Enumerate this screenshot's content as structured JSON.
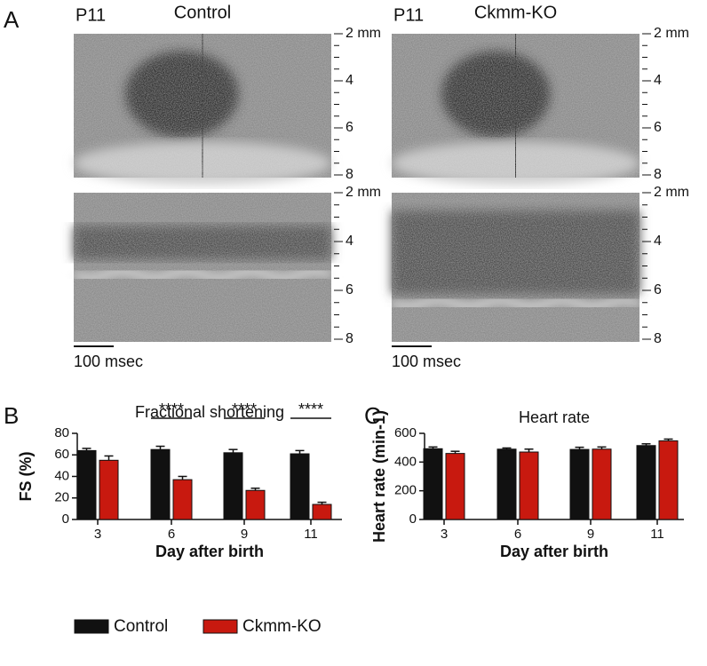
{
  "panel_a": {
    "label": "A",
    "images": [
      {
        "stage": "P11",
        "group": "Control",
        "scale_bar": "100 msec"
      },
      {
        "stage": "P11",
        "group": "Ckmm-KO",
        "scale_bar": "100 msec"
      }
    ],
    "depth_ticks": [
      {
        "value": 2,
        "label": "2 mm"
      },
      4,
      6,
      8
    ]
  },
  "chart_data": [
    {
      "type": "bar",
      "panel_label": "B",
      "title": "Fractional shortening",
      "x_label": "Day after birth",
      "y_label": "FS (%)",
      "categories": [
        "3",
        "6",
        "9",
        "11"
      ],
      "series": [
        {
          "name": "Control",
          "color": "#111111",
          "values": [
            64,
            65,
            62,
            61
          ],
          "errors": [
            2,
            3,
            3,
            3
          ]
        },
        {
          "name": "Ckmm-KO",
          "color": "#c8190f",
          "values": [
            55,
            37,
            27,
            14
          ],
          "errors": [
            4,
            3,
            2,
            2
          ]
        }
      ],
      "significance": [
        null,
        "****",
        "****",
        "****"
      ],
      "ylim": [
        0,
        80
      ],
      "yticks": [
        0,
        20,
        40,
        60,
        80
      ],
      "legend": "bottom"
    },
    {
      "type": "bar",
      "panel_label": "C",
      "title": "Heart rate",
      "x_label": "Day after birth",
      "y_label": "Heart rate (min-1)",
      "categories": [
        "3",
        "6",
        "9",
        "11"
      ],
      "series": [
        {
          "color": "#111111",
          "values": [
            493,
            490,
            488,
            515
          ],
          "errors": [
            12,
            8,
            15,
            12
          ]
        },
        {
          "color": "#c8190f",
          "values": [
            460,
            470,
            490,
            548
          ],
          "errors": [
            15,
            20,
            15,
            12
          ]
        }
      ],
      "ylim": [
        0,
        600
      ],
      "yticks": [
        0,
        200,
        400,
        600
      ]
    }
  ]
}
